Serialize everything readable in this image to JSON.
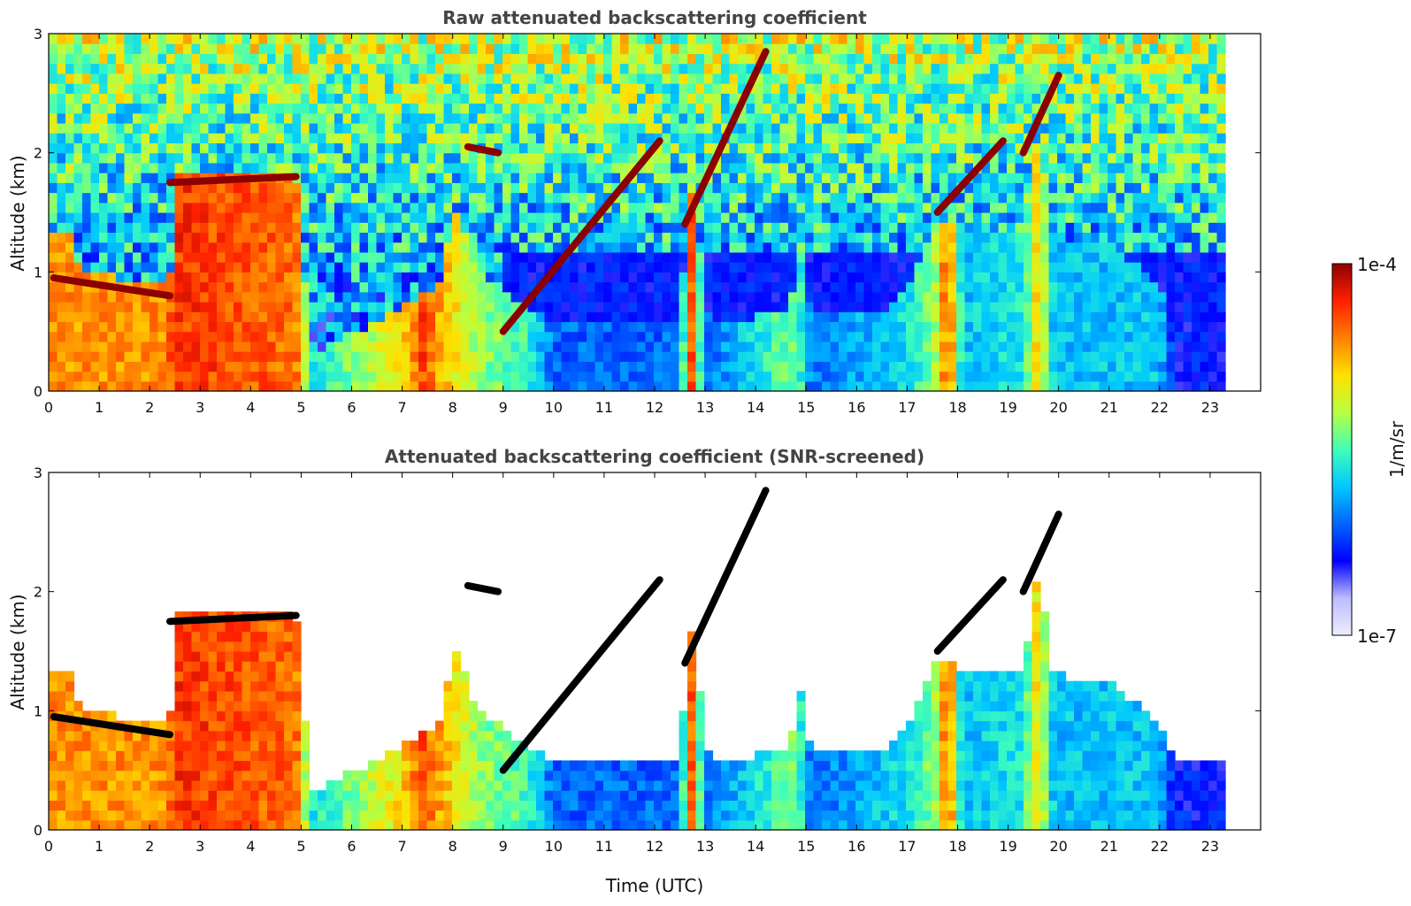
{
  "chart_data": [
    {
      "type": "heatmap",
      "title": "Raw attenuated backscattering coefficient",
      "xlabel": "",
      "ylabel": "Altitude (km)",
      "xlim": [
        0,
        24
      ],
      "ylim": [
        0,
        3
      ],
      "data_end_time": 23.3,
      "x_ticks": [
        "0",
        "1",
        "2",
        "3",
        "4",
        "5",
        "6",
        "7",
        "8",
        "9",
        "10",
        "11",
        "12",
        "13",
        "14",
        "15",
        "16",
        "17",
        "18",
        "19",
        "20",
        "21",
        "22",
        "23"
      ],
      "y_ticks": [
        "0",
        "1",
        "2",
        "3"
      ],
      "cloud_layers": [
        {
          "t": [
            0.1,
            2.4
          ],
          "alt": [
            0.95,
            0.8
          ]
        },
        {
          "t": [
            2.4,
            4.9
          ],
          "alt": [
            1.75,
            1.8
          ]
        },
        {
          "t": [
            8.3,
            8.9
          ],
          "alt": [
            2.05,
            2.0
          ]
        },
        {
          "t": [
            9.0,
            12.1
          ],
          "alt": [
            0.5,
            2.1
          ]
        },
        {
          "t": [
            12.6,
            14.2
          ],
          "alt": [
            1.4,
            2.85
          ]
        },
        {
          "t": [
            17.6,
            18.9
          ],
          "alt": [
            1.5,
            2.1
          ]
        },
        {
          "t": [
            19.3,
            20.0
          ],
          "alt": [
            2.0,
            2.65
          ]
        }
      ],
      "mode": "raw"
    },
    {
      "type": "heatmap",
      "title": "Attenuated backscattering coefficient (SNR-screened)",
      "xlabel": "Time (UTC)",
      "ylabel": "Altitude (km)",
      "xlim": [
        0,
        24
      ],
      "ylim": [
        0,
        3
      ],
      "data_end_time": 23.3,
      "x_ticks": [
        "0",
        "1",
        "2",
        "3",
        "4",
        "5",
        "6",
        "7",
        "8",
        "9",
        "10",
        "11",
        "12",
        "13",
        "14",
        "15",
        "16",
        "17",
        "18",
        "19",
        "20",
        "21",
        "22",
        "23"
      ],
      "y_ticks": [
        "0",
        "1",
        "2",
        "3"
      ],
      "cloud_layers": [
        {
          "t": [
            0.1,
            2.4
          ],
          "alt": [
            0.95,
            0.8
          ]
        },
        {
          "t": [
            2.4,
            4.9
          ],
          "alt": [
            1.75,
            1.8
          ]
        },
        {
          "t": [
            8.3,
            8.9
          ],
          "alt": [
            2.05,
            2.0
          ]
        },
        {
          "t": [
            9.0,
            12.1
          ],
          "alt": [
            0.5,
            2.1
          ]
        },
        {
          "t": [
            12.6,
            14.2
          ],
          "alt": [
            1.4,
            2.85
          ]
        },
        {
          "t": [
            17.6,
            18.9
          ],
          "alt": [
            1.5,
            2.1
          ]
        },
        {
          "t": [
            19.3,
            20.0
          ],
          "alt": [
            2.0,
            2.65
          ]
        }
      ],
      "mode": "screened"
    }
  ],
  "colorbar": {
    "label": "1/m/sr",
    "max_label": "1e-4",
    "min_label": "1e-7",
    "colormap": "jet",
    "colors": [
      "#eeeeff",
      "#bbbbff",
      "#0000ff",
      "#0064ff",
      "#00c8ff",
      "#40ffb8",
      "#b8ff40",
      "#ffe000",
      "#ff8000",
      "#ff2000",
      "#900000"
    ]
  }
}
